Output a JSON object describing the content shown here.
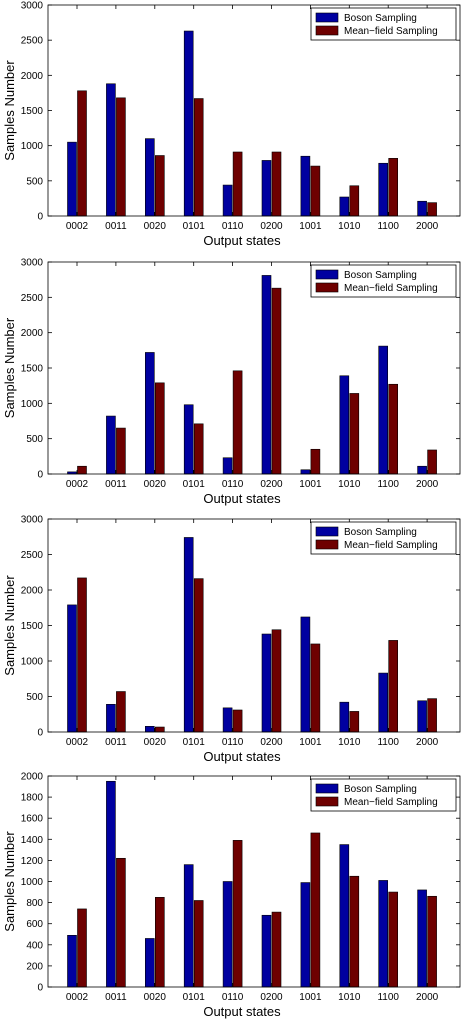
{
  "colors": {
    "boson": "#0000a0",
    "meanfield": "#6e0000",
    "axis": "#000000"
  },
  "chart_data": [
    {
      "type": "bar",
      "categories": [
        "0002",
        "0011",
        "0020",
        "0101",
        "0110",
        "0200",
        "1001",
        "1010",
        "1100",
        "2000"
      ],
      "series": [
        {
          "name": "Boson Sampling",
          "values": [
            1050,
            1880,
            1100,
            2630,
            440,
            790,
            850,
            270,
            750,
            210
          ]
        },
        {
          "name": "Mean−field Sampling",
          "values": [
            1780,
            1680,
            860,
            1670,
            910,
            910,
            710,
            430,
            820,
            190
          ]
        }
      ],
      "xlabel": "Output states",
      "ylabel": "Samples Number",
      "ylim": [
        0,
        3000
      ],
      "yticks": [
        0,
        500,
        1000,
        1500,
        2000,
        2500,
        3000
      ],
      "legend": "top-right",
      "grid": false
    },
    {
      "type": "bar",
      "categories": [
        "0002",
        "0011",
        "0020",
        "0101",
        "0110",
        "0200",
        "1001",
        "1010",
        "1100",
        "2000"
      ],
      "series": [
        {
          "name": "Boson Sampling",
          "values": [
            30,
            820,
            1720,
            980,
            230,
            2810,
            60,
            1390,
            1810,
            110
          ]
        },
        {
          "name": "Mean−field Sampling",
          "values": [
            110,
            650,
            1290,
            710,
            1460,
            2630,
            350,
            1140,
            1270,
            340
          ]
        }
      ],
      "xlabel": "Output states",
      "ylabel": "Samples Number",
      "ylim": [
        0,
        3000
      ],
      "yticks": [
        0,
        500,
        1000,
        1500,
        2000,
        2500,
        3000
      ],
      "legend": "top-right",
      "grid": false
    },
    {
      "type": "bar",
      "categories": [
        "0002",
        "0011",
        "0020",
        "0101",
        "0110",
        "0200",
        "1001",
        "1010",
        "1100",
        "2000"
      ],
      "series": [
        {
          "name": "Boson Sampling",
          "values": [
            1790,
            390,
            80,
            2740,
            340,
            1380,
            1620,
            420,
            830,
            440
          ]
        },
        {
          "name": "Mean−field Sampling",
          "values": [
            2170,
            570,
            70,
            2160,
            310,
            1440,
            1240,
            290,
            1290,
            470
          ]
        }
      ],
      "xlabel": "Output states",
      "ylabel": "Samples Number",
      "ylim": [
        0,
        3000
      ],
      "yticks": [
        0,
        500,
        1000,
        1500,
        2000,
        2500,
        3000
      ],
      "legend": "top-right",
      "grid": false
    },
    {
      "type": "bar",
      "categories": [
        "0002",
        "0011",
        "0020",
        "0101",
        "0110",
        "0200",
        "1001",
        "1010",
        "1100",
        "2000"
      ],
      "series": [
        {
          "name": "Boson Sampling",
          "values": [
            490,
            1950,
            460,
            1160,
            1000,
            680,
            990,
            1350,
            1010,
            920
          ]
        },
        {
          "name": "Mean−field Sampling",
          "values": [
            740,
            1220,
            850,
            820,
            1390,
            710,
            1460,
            1050,
            900,
            860
          ]
        }
      ],
      "xlabel": "Output states",
      "ylabel": "Samples Number",
      "ylim": [
        0,
        2000
      ],
      "yticks": [
        0,
        200,
        400,
        600,
        800,
        1000,
        1200,
        1400,
        1600,
        1800,
        2000
      ],
      "legend": "top-right",
      "grid": false
    }
  ]
}
